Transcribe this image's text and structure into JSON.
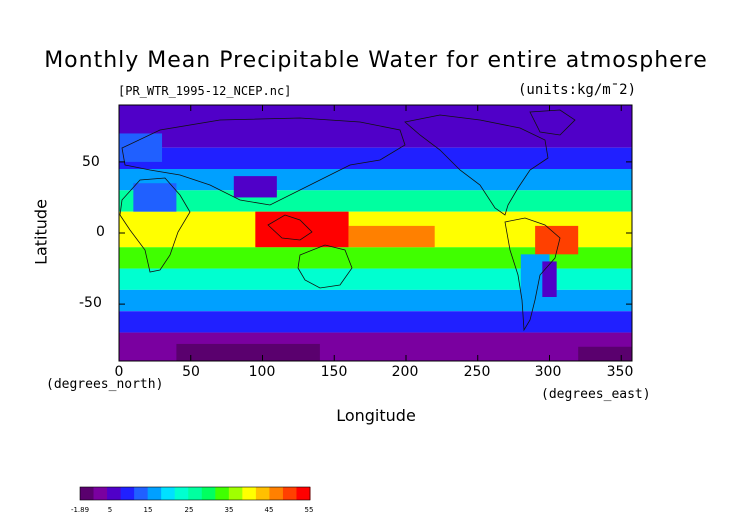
{
  "title": "Monthly Mean Precipitable Water for entire atmosphere",
  "filename": "[PR_WTR_1995-12_NCEP.nc]",
  "units": "(units:kg/m¯2)",
  "chart_data": {
    "type": "heatmap",
    "title": "Monthly Mean Precipitable Water for entire atmosphere",
    "xlabel": "Longitude",
    "ylabel": "Latitude",
    "x_unit": "(degrees_east)",
    "y_unit": "(degrees_north)",
    "xlim": [
      0,
      357.5
    ],
    "ylim": [
      -90,
      90
    ],
    "x_ticks": [
      "0",
      "50",
      "100",
      "150",
      "200",
      "250",
      "300",
      "350"
    ],
    "y_ticks": [
      "50",
      "0",
      "-50"
    ],
    "colorbar": {
      "labels": [
        "-1.89",
        "5",
        "15",
        "25",
        "35",
        "45",
        "55"
      ],
      "colors": [
        "#5a006e",
        "#7a00a0",
        "#5000c8",
        "#2020ff",
        "#2060ff",
        "#00a0ff",
        "#00e0ff",
        "#00ffd0",
        "#00ffa0",
        "#00ff60",
        "#40ff00",
        "#a0ff00",
        "#ffff00",
        "#ffc000",
        "#ff8000",
        "#ff4000",
        "#ff0000"
      ]
    },
    "bands": [
      {
        "lat": [
          60,
          90
        ],
        "value": 5
      },
      {
        "lat": [
          45,
          60
        ],
        "value": 10
      },
      {
        "lat": [
          30,
          45
        ],
        "value": 17
      },
      {
        "lat": [
          15,
          30
        ],
        "value": 25
      },
      {
        "lat": [
          -10,
          15
        ],
        "value": 40
      },
      {
        "lat": [
          -25,
          -10
        ],
        "value": 32
      },
      {
        "lat": [
          -40,
          -25
        ],
        "value": 22
      },
      {
        "lat": [
          -55,
          -40
        ],
        "value": 15
      },
      {
        "lat": [
          -70,
          -55
        ],
        "value": 9
      },
      {
        "lat": [
          -90,
          -70
        ],
        "value": 2
      }
    ],
    "regions": [
      {
        "lon": [
          95,
          160
        ],
        "lat": [
          -10,
          15
        ],
        "value": 52
      },
      {
        "lon": [
          120,
          150
        ],
        "lat": [
          -5,
          8
        ],
        "value": 55
      },
      {
        "lon": [
          290,
          320
        ],
        "lat": [
          -15,
          5
        ],
        "value": 50
      },
      {
        "lon": [
          160,
          220
        ],
        "lat": [
          -10,
          5
        ],
        "value": 45
      },
      {
        "lon": [
          10,
          40
        ],
        "lat": [
          15,
          35
        ],
        "value": 12
      },
      {
        "lon": [
          80,
          110
        ],
        "lat": [
          25,
          40
        ],
        "value": 8
      },
      {
        "lon": [
          280,
          300
        ],
        "lat": [
          -50,
          -15
        ],
        "value": 15
      },
      {
        "lon": [
          295,
          305
        ],
        "lat": [
          -45,
          -20
        ],
        "value": 8
      },
      {
        "lon": [
          40,
          140
        ],
        "lat": [
          -90,
          -78
        ],
        "value": -1.89
      },
      {
        "lon": [
          320,
          357.5
        ],
        "lat": [
          -90,
          -80
        ],
        "value": -1.89
      },
      {
        "lon": [
          0,
          30
        ],
        "lat": [
          50,
          70
        ],
        "value": 12
      }
    ]
  }
}
